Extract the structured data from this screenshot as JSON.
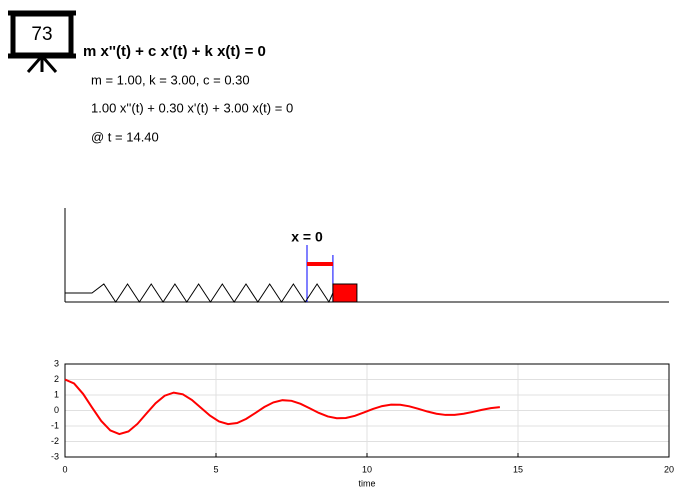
{
  "badge": "73",
  "equation": "m x''(t) + c x'(t) + k x(t) = 0",
  "params": "m = 1.00, k = 3.00, c = 0.30",
  "instance": "1.00 x''(t) + 0.30 x'(t) + 3.00 x(t) = 0",
  "time": "@ t = 14.40",
  "origin_label": "x = 0",
  "chart_data": {
    "type": "line",
    "xlabel": "time",
    "x": [
      0,
      0.3,
      0.6,
      0.9,
      1.2,
      1.5,
      1.8,
      2.1,
      2.4,
      2.7,
      3.0,
      3.3,
      3.6,
      3.9,
      4.2,
      4.5,
      4.8,
      5.1,
      5.4,
      5.7,
      6.0,
      6.3,
      6.6,
      6.9,
      7.2,
      7.5,
      7.8,
      8.1,
      8.4,
      8.7,
      9.0,
      9.3,
      9.6,
      9.9,
      10.2,
      10.5,
      10.8,
      11.1,
      11.4,
      11.7,
      12.0,
      12.3,
      12.6,
      12.9,
      13.2,
      13.5,
      13.8,
      14.1,
      14.4
    ],
    "series": [
      {
        "color": "#ff0000",
        "values": [
          2.0,
          1.744,
          1.07,
          0.183,
          -0.673,
          -1.285,
          -1.521,
          -1.352,
          -0.861,
          -0.187,
          0.471,
          0.953,
          1.154,
          1.047,
          0.684,
          0.179,
          -0.328,
          -0.708,
          -0.876,
          -0.809,
          -0.542,
          -0.164,
          0.225,
          0.522,
          0.665,
          0.625,
          0.432,
          0.146,
          -0.152,
          -0.385,
          -0.502,
          -0.482,
          -0.341,
          -0.127,
          0.102,
          0.285,
          0.38,
          0.371,
          0.27,
          0.109,
          -0.066,
          -0.208,
          -0.286,
          -0.285,
          -0.212,
          -0.092,
          0.041,
          0.153,
          0.216
        ]
      }
    ],
    "xlim": [
      0,
      20
    ],
    "ylim": [
      -3,
      3
    ],
    "xticks": [
      0,
      5,
      10,
      15,
      20
    ],
    "yticks": [
      -3,
      -2,
      -1,
      0,
      1,
      2,
      3
    ],
    "grid": true
  }
}
